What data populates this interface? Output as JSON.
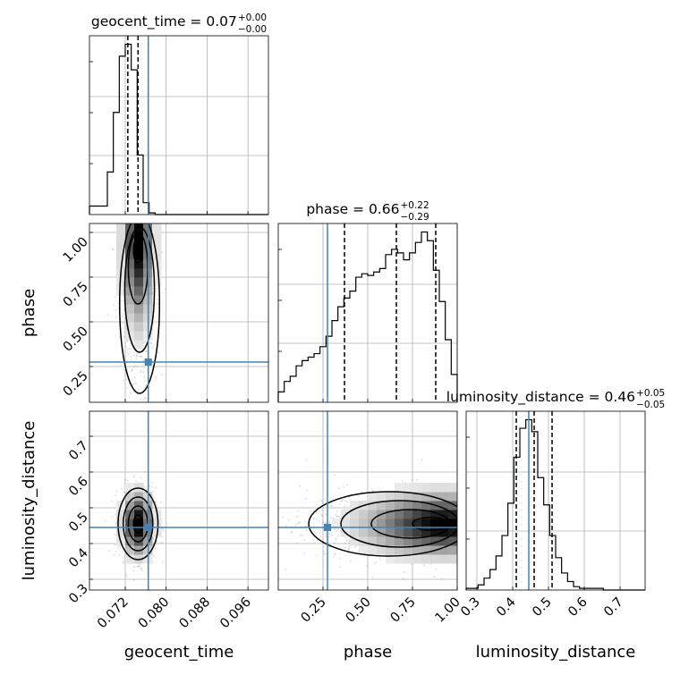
{
  "chart_data": {
    "type": "corner",
    "parameters": [
      "geocent_time",
      "phase",
      "luminosity_distance"
    ],
    "truth": {
      "geocent_time": 0.0765,
      "phase": 0.275,
      "luminosity_distance": 0.445
    },
    "colors": {
      "truth": "#4682b4",
      "line": "#000000",
      "grid": "#b0b0b0",
      "density_max": "#000000"
    },
    "grid": true,
    "diagonal": [
      {
        "parameter": "geocent_time",
        "title_text": "geocent_time = 0.07",
        "title_sup": "+0.00",
        "title_sub": "−0.00",
        "range": [
          0.065,
          0.1
        ],
        "ticks": [
          0.072,
          0.08,
          0.088,
          0.096
        ],
        "quantiles": [
          0.0725,
          0.0745,
          0.0765
        ],
        "hist": [
          0.05,
          0.05,
          0.05,
          0.25,
          0.6,
          0.93,
          1.0,
          0.85,
          0.35,
          0.07,
          0.01,
          0,
          0,
          0,
          0,
          0,
          0,
          0,
          0,
          0,
          0,
          0,
          0,
          0,
          0,
          0,
          0,
          0,
          0,
          0
        ]
      },
      {
        "parameter": "phase",
        "title_text": "phase = 0.66",
        "title_sup": "+0.22",
        "title_sub": "−0.29",
        "range": [
          0.0,
          1.0
        ],
        "ticks": [
          0.25,
          0.5,
          0.75,
          1.0
        ],
        "quantiles": [
          0.37,
          0.66,
          0.88
        ],
        "hist": [
          0.06,
          0.12,
          0.15,
          0.21,
          0.24,
          0.26,
          0.28,
          0.32,
          0.38,
          0.47,
          0.55,
          0.6,
          0.64,
          0.72,
          0.74,
          0.73,
          0.75,
          0.77,
          0.85,
          0.88,
          0.86,
          0.82,
          0.86,
          0.92,
          0.98,
          0.93,
          0.76,
          0.58,
          0.36,
          0.16
        ]
      },
      {
        "parameter": "luminosity_distance",
        "title_text": "luminosity_distance = 0.46",
        "title_sup": "+0.05",
        "title_sub": "−0.05",
        "range": [
          0.27,
          0.77
        ],
        "ticks": [
          0.3,
          0.4,
          0.5,
          0.6,
          0.7
        ],
        "quantiles": [
          0.41,
          0.46,
          0.51
        ],
        "hist": [
          0.01,
          0.01,
          0.03,
          0.07,
          0.12,
          0.2,
          0.32,
          0.51,
          0.78,
          0.95,
          1.0,
          0.93,
          0.66,
          0.5,
          0.32,
          0.19,
          0.1,
          0.05,
          0.02,
          0.01,
          0.01,
          0.01,
          0.01,
          0.0,
          0.0,
          0.0,
          0.0,
          0.0,
          0.0,
          0.0
        ]
      }
    ],
    "pairs": [
      {
        "x": "geocent_time",
        "y": "phase",
        "ylim": [
          0.05,
          1.05
        ],
        "yticks": [
          0.25,
          0.5,
          0.75,
          1.0
        ],
        "peak": [
          0.0745,
          0.9
        ],
        "sigma": [
          0.0017,
          0.25
        ],
        "contour_levels": [
          {
            "cx": 0.0745,
            "cy": 0.9,
            "rx": 0.0009,
            "ry": 0.07
          },
          {
            "cx": 0.0745,
            "cy": 0.8,
            "rx": 0.0019,
            "ry": 0.2
          },
          {
            "cx": 0.0748,
            "cy": 0.68,
            "rx": 0.0029,
            "ry": 0.35
          },
          {
            "cx": 0.0748,
            "cy": 0.6,
            "rx": 0.0039,
            "ry": 0.5
          }
        ]
      },
      {
        "x": "geocent_time",
        "y": "luminosity_distance",
        "ylim": [
          0.27,
          0.77
        ],
        "yticks": [
          0.3,
          0.4,
          0.5,
          0.6,
          0.7
        ],
        "peak": [
          0.0745,
          0.455
        ],
        "sigma": [
          0.0017,
          0.05
        ],
        "contour_levels": [
          {
            "cx": 0.0745,
            "cy": 0.455,
            "rx": 0.0009,
            "ry": 0.025
          },
          {
            "cx": 0.0745,
            "cy": 0.455,
            "rx": 0.0019,
            "ry": 0.05
          },
          {
            "cx": 0.0745,
            "cy": 0.455,
            "rx": 0.0029,
            "ry": 0.075
          },
          {
            "cx": 0.0745,
            "cy": 0.455,
            "rx": 0.0039,
            "ry": 0.1
          }
        ]
      },
      {
        "x": "phase",
        "y": "luminosity_distance",
        "ylim": [
          0.27,
          0.77
        ],
        "peak": [
          0.88,
          0.455
        ],
        "sigma": [
          0.25,
          0.05
        ],
        "contour_levels": [
          {
            "cx": 0.85,
            "cy": 0.455,
            "rx": 0.1,
            "ry": 0.018
          },
          {
            "cx": 0.74,
            "cy": 0.455,
            "rx": 0.22,
            "ry": 0.04
          },
          {
            "cx": 0.68,
            "cy": 0.455,
            "rx": 0.33,
            "ry": 0.065
          },
          {
            "cx": 0.62,
            "cy": 0.455,
            "rx": 0.45,
            "ry": 0.09
          }
        ]
      }
    ]
  }
}
